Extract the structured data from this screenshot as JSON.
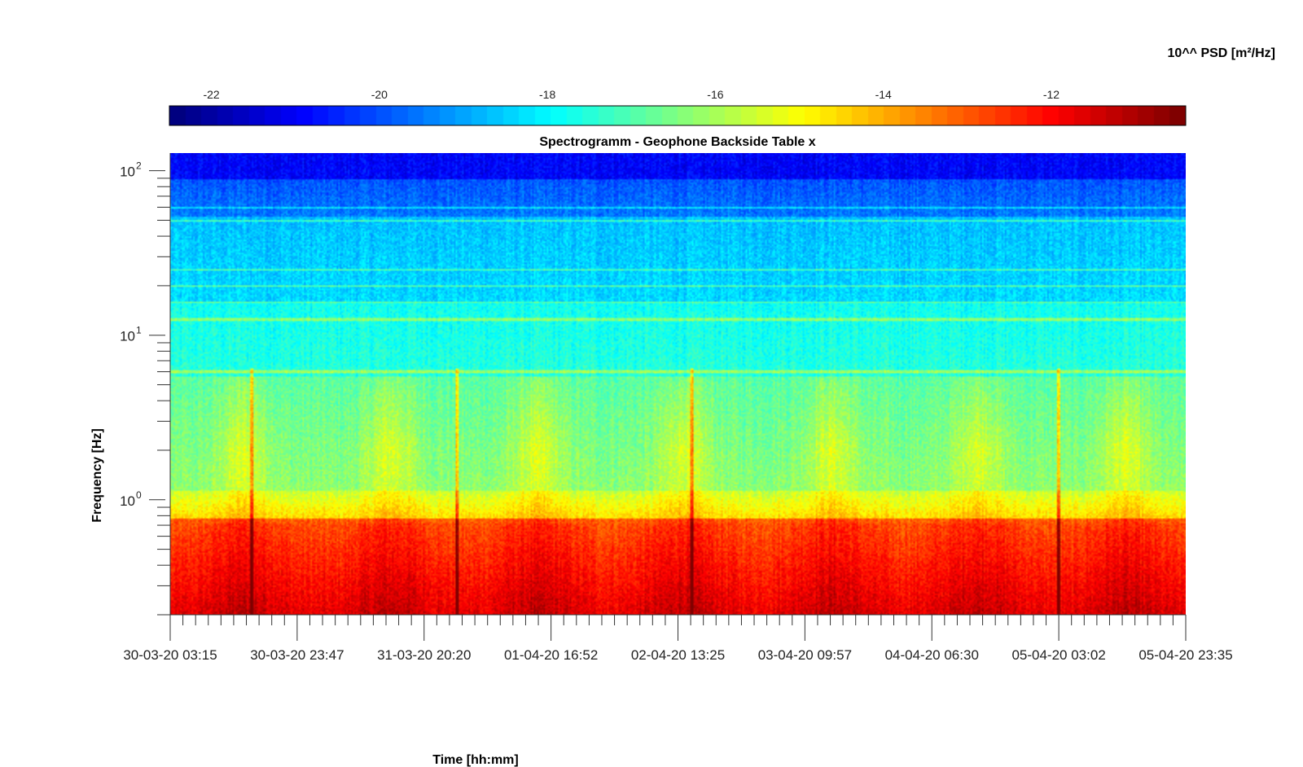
{
  "chart_data": {
    "type": "heatmap",
    "title": "Spectrogramm - Geophone Backside Table x",
    "xlabel": "Time [hh:mm]",
    "ylabel": "Frequency [Hz]",
    "colorbar": {
      "label": "10^^ PSD [m²/Hz]",
      "ticks": [
        -22,
        -20,
        -18,
        -16,
        -14,
        -12
      ],
      "range": [
        -22.5,
        -10.4
      ],
      "colormap": "jet"
    },
    "x_tick_labels": [
      "30-03-20 03:15",
      "30-03-20 23:47",
      "31-03-20 20:20",
      "01-04-20 16:52",
      "02-04-20 13:25",
      "03-04-20 09:57",
      "04-04-20 06:30",
      "05-04-20 03:02",
      "05-04-20 23:35"
    ],
    "y_scale": "log",
    "y_ticks": [
      {
        "base": "10",
        "exp": "0",
        "value": 1
      },
      {
        "base": "10",
        "exp": "1",
        "value": 10
      },
      {
        "base": "10",
        "exp": "2",
        "value": 100
      }
    ],
    "y_range": [
      0.2,
      128
    ],
    "features": {
      "daily_activity_days": [
        0.5,
        1.5,
        2.5,
        3.5,
        4.5,
        5.5,
        6.5
      ],
      "spike_days": [
        0.55,
        1.95,
        3.55,
        6.05
      ],
      "harmonic_lines_hz": [
        6,
        12.5,
        16,
        20,
        25,
        50,
        60
      ]
    }
  }
}
